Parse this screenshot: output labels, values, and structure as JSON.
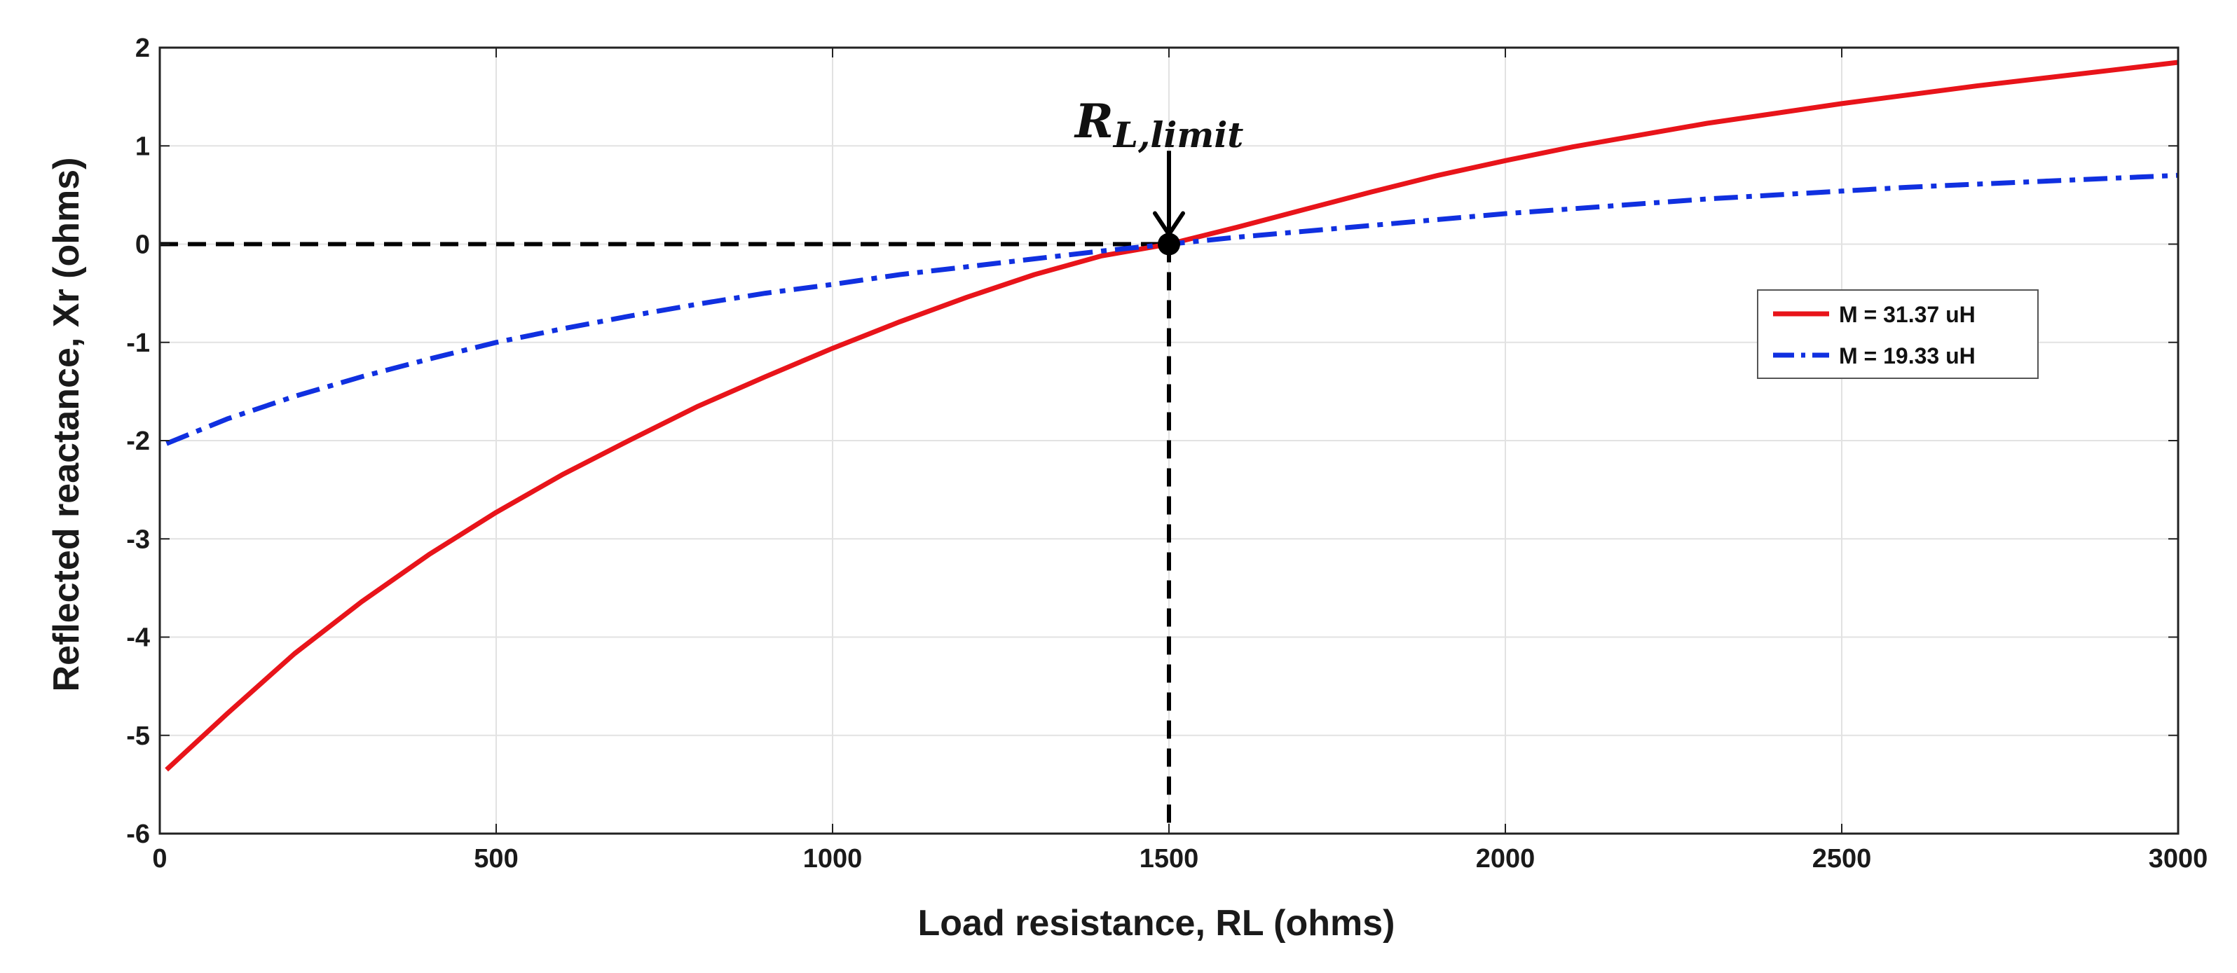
{
  "chart_data": {
    "type": "line",
    "title": "",
    "xlabel": "Load resistance, RL (ohms)",
    "ylabel": "Reflected reactance, Xr (ohms)",
    "xlim": [
      0,
      3000
    ],
    "ylim": [
      -6,
      2
    ],
    "x_ticks": [
      "0",
      "500",
      "1000",
      "1500",
      "2000",
      "2500",
      "3000"
    ],
    "y_ticks": [
      "2",
      "1",
      "0",
      "-1",
      "-2",
      "-3",
      "-4",
      "-5",
      "-6"
    ],
    "grid": true,
    "legend_position": "right",
    "series": [
      {
        "name": "M = 31.37 uH",
        "color": "#e8141a",
        "style": "solid",
        "x": [
          10,
          100,
          200,
          300,
          400,
          500,
          600,
          700,
          800,
          900,
          1000,
          1100,
          1200,
          1300,
          1400,
          1500,
          1600,
          1700,
          1800,
          1900,
          2000,
          2100,
          2200,
          2300,
          2400,
          2500,
          2600,
          2700,
          2800,
          2900,
          3000
        ],
        "y": [
          -5.35,
          -4.78,
          -4.17,
          -3.64,
          -3.16,
          -2.73,
          -2.34,
          -1.99,
          -1.65,
          -1.35,
          -1.06,
          -0.79,
          -0.54,
          -0.31,
          -0.12,
          0.0,
          0.17,
          0.35,
          0.53,
          0.7,
          0.85,
          0.99,
          1.11,
          1.23,
          1.33,
          1.43,
          1.52,
          1.61,
          1.69,
          1.77,
          1.85
        ]
      },
      {
        "name": "M = 19.33 uH",
        "color": "#1030e0",
        "style": "dashdot",
        "x": [
          10,
          100,
          200,
          300,
          400,
          500,
          600,
          700,
          800,
          900,
          1000,
          1100,
          1200,
          1300,
          1400,
          1500,
          1600,
          1700,
          1800,
          1900,
          2000,
          2100,
          2200,
          2300,
          2400,
          2500,
          2600,
          2700,
          2800,
          2900,
          3000
        ],
        "y": [
          -2.03,
          -1.78,
          -1.55,
          -1.35,
          -1.17,
          -1.0,
          -0.86,
          -0.73,
          -0.61,
          -0.5,
          -0.41,
          -0.31,
          -0.23,
          -0.15,
          -0.07,
          0.0,
          0.07,
          0.13,
          0.19,
          0.25,
          0.31,
          0.36,
          0.41,
          0.46,
          0.5,
          0.54,
          0.58,
          0.61,
          0.64,
          0.67,
          0.7
        ]
      }
    ],
    "annotations": {
      "limit_label_main": "R",
      "limit_label_sub": "L,limit",
      "limit_x": 1500,
      "limit_y": 0,
      "arrow_from_y": 0.95
    }
  }
}
